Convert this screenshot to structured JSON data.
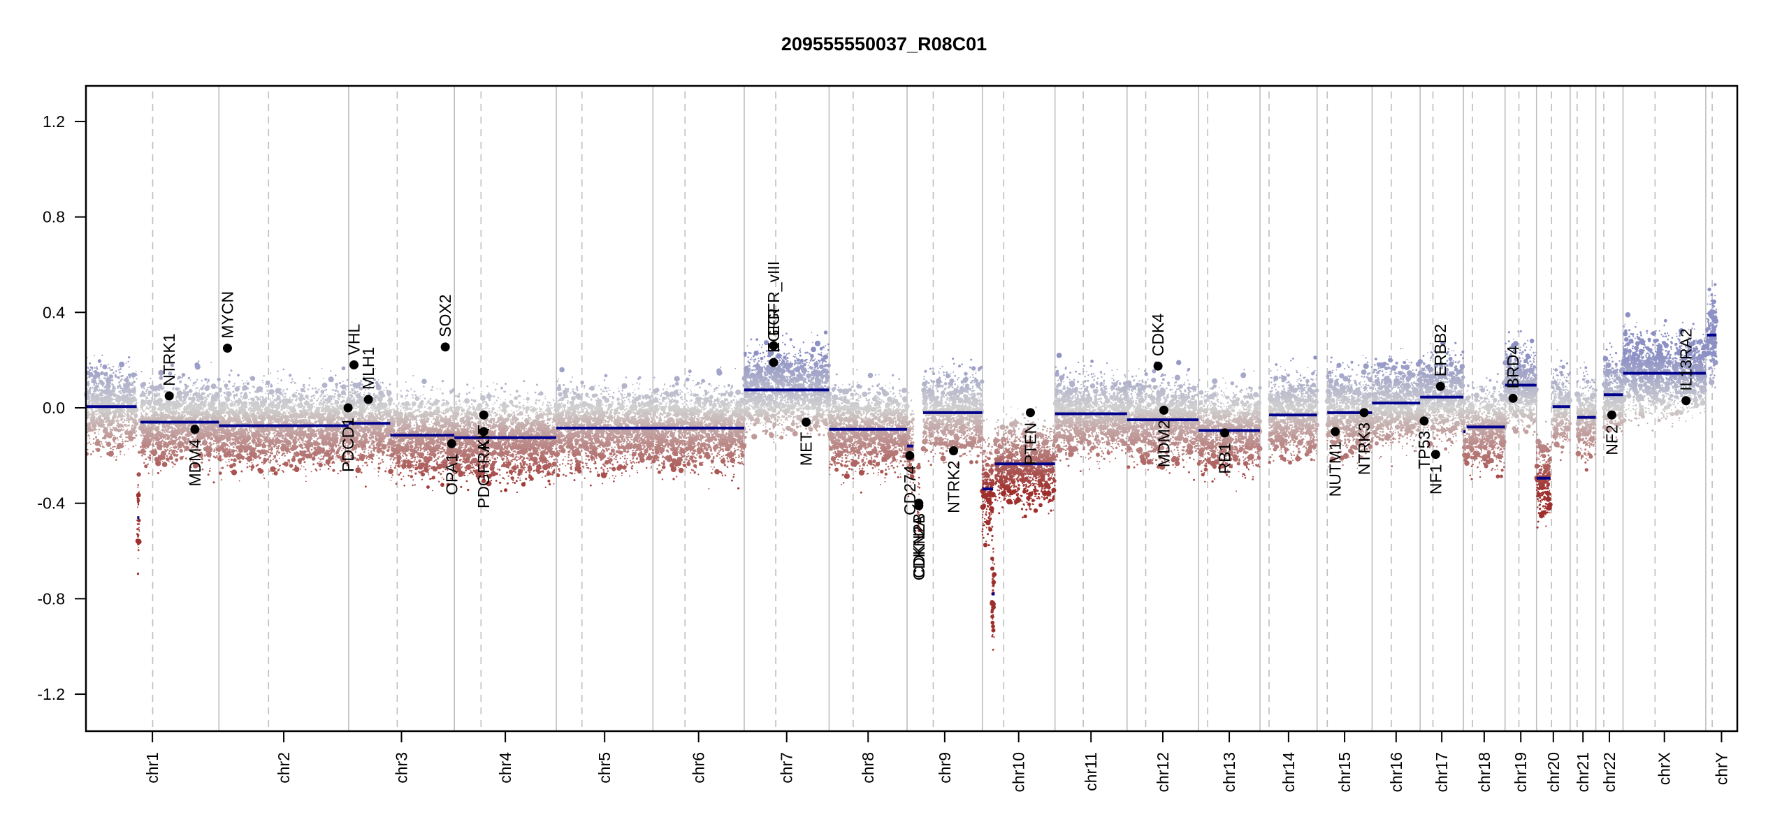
{
  "chart_data": {
    "type": "scatter",
    "title": "209555550037_R08C01",
    "xlabel": "",
    "ylabel": "",
    "ylim": [
      -1.35,
      1.35
    ],
    "yticks": [
      1.2,
      0.8,
      0.4,
      0.0,
      -0.4,
      -0.8,
      -1.2
    ],
    "ytick_labels": [
      "1.2",
      "0.8",
      "0.4",
      "0.0",
      "-0.4",
      "-0.8",
      "-1.2"
    ],
    "grid": false,
    "colors": {
      "gain": "#8c90c4",
      "neutral": "#d0d0d0",
      "loss": "#9e2f2c",
      "segment": "#00008b",
      "chrom_boundary": "#bebebe",
      "centromere": "#bebebe",
      "gene_point": "#000000"
    },
    "chromosomes": [
      {
        "name": "chr1",
        "length": 249,
        "centromere": 125
      },
      {
        "name": "chr2",
        "length": 243,
        "centromere": 93
      },
      {
        "name": "chr3",
        "length": 198,
        "centromere": 91
      },
      {
        "name": "chr4",
        "length": 191,
        "centromere": 50
      },
      {
        "name": "chr5",
        "length": 181,
        "centromere": 48
      },
      {
        "name": "chr6",
        "length": 171,
        "centromere": 60
      },
      {
        "name": "chr7",
        "length": 159,
        "centromere": 59
      },
      {
        "name": "chr8",
        "length": 146,
        "centromere": 45
      },
      {
        "name": "chr9",
        "length": 141,
        "centromere": 49
      },
      {
        "name": "chr10",
        "length": 136,
        "centromere": 40
      },
      {
        "name": "chr11",
        "length": 135,
        "centromere": 53
      },
      {
        "name": "chr12",
        "length": 134,
        "centromere": 35
      },
      {
        "name": "chr13",
        "length": 115,
        "centromere": 17
      },
      {
        "name": "chr14",
        "length": 107,
        "centromere": 17
      },
      {
        "name": "chr15",
        "length": 103,
        "centromere": 19
      },
      {
        "name": "chr16",
        "length": 90,
        "centromere": 36
      },
      {
        "name": "chr17",
        "length": 81,
        "centromere": 24
      },
      {
        "name": "chr18",
        "length": 78,
        "centromere": 17
      },
      {
        "name": "chr19",
        "length": 59,
        "centromere": 26
      },
      {
        "name": "chr20",
        "length": 63,
        "centromere": 28
      },
      {
        "name": "chr21",
        "length": 48,
        "centromere": 13
      },
      {
        "name": "chr22",
        "length": 51,
        "centromere": 15
      },
      {
        "name": "chrX",
        "length": 155,
        "centromere": 60
      },
      {
        "name": "chrY",
        "length": 59,
        "centromere": 12
      }
    ],
    "segments": [
      {
        "chr": "chr1",
        "start": 0,
        "end": 95,
        "value": 0.005
      },
      {
        "chr": "chr1",
        "start": 96,
        "end": 100,
        "value": -0.46
      },
      {
        "chr": "chr1",
        "start": 102,
        "end": 249,
        "value": -0.06
      },
      {
        "chr": "chr2",
        "start": 0,
        "end": 243,
        "value": -0.075
      },
      {
        "chr": "chr3",
        "start": 0,
        "end": 78,
        "value": -0.065
      },
      {
        "chr": "chr3",
        "start": 78,
        "end": 198,
        "value": -0.115
      },
      {
        "chr": "chr4",
        "start": 0,
        "end": 191,
        "value": -0.125
      },
      {
        "chr": "chr5",
        "start": 0,
        "end": 181,
        "value": -0.085
      },
      {
        "chr": "chr6",
        "start": 0,
        "end": 171,
        "value": -0.085
      },
      {
        "chr": "chr7",
        "start": 0,
        "end": 159,
        "value": 0.075
      },
      {
        "chr": "chr8",
        "start": 0,
        "end": 146,
        "value": -0.09
      },
      {
        "chr": "chr9",
        "start": 0,
        "end": 12,
        "value": -0.16
      },
      {
        "chr": "chr9",
        "start": 20,
        "end": 24,
        "value": -0.42
      },
      {
        "chr": "chr9",
        "start": 30,
        "end": 141,
        "value": -0.02
      },
      {
        "chr": "chr10",
        "start": 0,
        "end": 20,
        "value": -0.34
      },
      {
        "chr": "chr10",
        "start": 18,
        "end": 23,
        "value": -0.78
      },
      {
        "chr": "chr10",
        "start": 24,
        "end": 136,
        "value": -0.235
      },
      {
        "chr": "chr11",
        "start": 0,
        "end": 135,
        "value": -0.025
      },
      {
        "chr": "chr12",
        "start": 0,
        "end": 134,
        "value": -0.05
      },
      {
        "chr": "chr13",
        "start": 0,
        "end": 115,
        "value": -0.095
      },
      {
        "chr": "chr14",
        "start": 17,
        "end": 107,
        "value": -0.03
      },
      {
        "chr": "chr15",
        "start": 19,
        "end": 103,
        "value": -0.02
      },
      {
        "chr": "chr16",
        "start": 0,
        "end": 90,
        "value": 0.02
      },
      {
        "chr": "chr17",
        "start": 0,
        "end": 81,
        "value": 0.045
      },
      {
        "chr": "chr18",
        "start": 0,
        "end": 4,
        "value": -0.1
      },
      {
        "chr": "chr18",
        "start": 6,
        "end": 78,
        "value": -0.08
      },
      {
        "chr": "chr19",
        "start": 0,
        "end": 59,
        "value": 0.095
      },
      {
        "chr": "chr20",
        "start": 0,
        "end": 26,
        "value": -0.295
      },
      {
        "chr": "chr20",
        "start": 30,
        "end": 63,
        "value": 0.005
      },
      {
        "chr": "chr21",
        "start": 13,
        "end": 48,
        "value": -0.04
      },
      {
        "chr": "chr22",
        "start": 15,
        "end": 51,
        "value": 0.055
      },
      {
        "chr": "chrX",
        "start": 0,
        "end": 155,
        "value": 0.145
      },
      {
        "chr": "chrY",
        "start": 2,
        "end": 20,
        "value": 0.305
      }
    ],
    "genes": [
      {
        "name": "NTRK1",
        "chr": "chr1",
        "pos": 156,
        "value": 0.05,
        "label": "above"
      },
      {
        "name": "MDM4",
        "chr": "chr1",
        "pos": 204,
        "value": -0.09,
        "label": "below"
      },
      {
        "name": "MYCN",
        "chr": "chr2",
        "pos": 16,
        "value": 0.25,
        "label": "above"
      },
      {
        "name": "PDCD1",
        "chr": "chr2",
        "pos": 242,
        "value": 0.0,
        "label": "below"
      },
      {
        "name": "VHL",
        "chr": "chr3",
        "pos": 10,
        "value": 0.18,
        "label": "above"
      },
      {
        "name": "MLH1",
        "chr": "chr3",
        "pos": 37,
        "value": 0.035,
        "label": "above"
      },
      {
        "name": "SOX2",
        "chr": "chr3",
        "pos": 181,
        "value": 0.255,
        "label": "above"
      },
      {
        "name": "OPA1",
        "chr": "chr3",
        "pos": 193,
        "value": -0.15,
        "label": "below"
      },
      {
        "name": "PDGFRA",
        "chr": "chr4",
        "pos": 55,
        "value": -0.1,
        "label": "below"
      },
      {
        "name": "KIT",
        "chr": "chr4",
        "pos": 55,
        "value": -0.03,
        "label": "below"
      },
      {
        "name": "EGFR",
        "chr": "chr7",
        "pos": 55,
        "value": 0.19,
        "label": "above"
      },
      {
        "name": "EGFR_vIII",
        "chr": "chr7",
        "pos": 55,
        "value": 0.26,
        "label": "above"
      },
      {
        "name": "MET",
        "chr": "chr7",
        "pos": 116,
        "value": -0.06,
        "label": "below"
      },
      {
        "name": "CD274",
        "chr": "chr9",
        "pos": 5,
        "value": -0.2,
        "label": "below"
      },
      {
        "name": "CDKN2A",
        "chr": "chr9",
        "pos": 22,
        "value": -0.41,
        "label": "below"
      },
      {
        "name": "CDKN2B",
        "chr": "chr9",
        "pos": 22,
        "value": -0.4,
        "label": "below"
      },
      {
        "name": "NTRK2",
        "chr": "chr9",
        "pos": 87,
        "value": -0.18,
        "label": "below"
      },
      {
        "name": "PTEN",
        "chr": "chr10",
        "pos": 90,
        "value": -0.02,
        "label": "below"
      },
      {
        "name": "CDK4",
        "chr": "chr12",
        "pos": 58,
        "value": 0.175,
        "label": "above"
      },
      {
        "name": "MDM2",
        "chr": "chr12",
        "pos": 69,
        "value": -0.01,
        "label": "below"
      },
      {
        "name": "RB1",
        "chr": "chr13",
        "pos": 49,
        "value": -0.105,
        "label": "below"
      },
      {
        "name": "NUTM1",
        "chr": "chr15",
        "pos": 34,
        "value": -0.1,
        "label": "below"
      },
      {
        "name": "NTRK3",
        "chr": "chr15",
        "pos": 88,
        "value": -0.02,
        "label": "below"
      },
      {
        "name": "TP53",
        "chr": "chr17",
        "pos": 7.5,
        "value": -0.055,
        "label": "below"
      },
      {
        "name": "NF1",
        "chr": "chr17",
        "pos": 29,
        "value": -0.195,
        "label": "below"
      },
      {
        "name": "ERBB2",
        "chr": "chr17",
        "pos": 38,
        "value": 0.09,
        "label": "above"
      },
      {
        "name": "BRD4",
        "chr": "chr19",
        "pos": 15,
        "value": 0.04,
        "label": "above"
      },
      {
        "name": "NF2",
        "chr": "chr22",
        "pos": 30,
        "value": -0.03,
        "label": "below"
      },
      {
        "name": "IL13RA2",
        "chr": "chrX",
        "pos": 118,
        "value": 0.03,
        "label": "above"
      }
    ]
  }
}
